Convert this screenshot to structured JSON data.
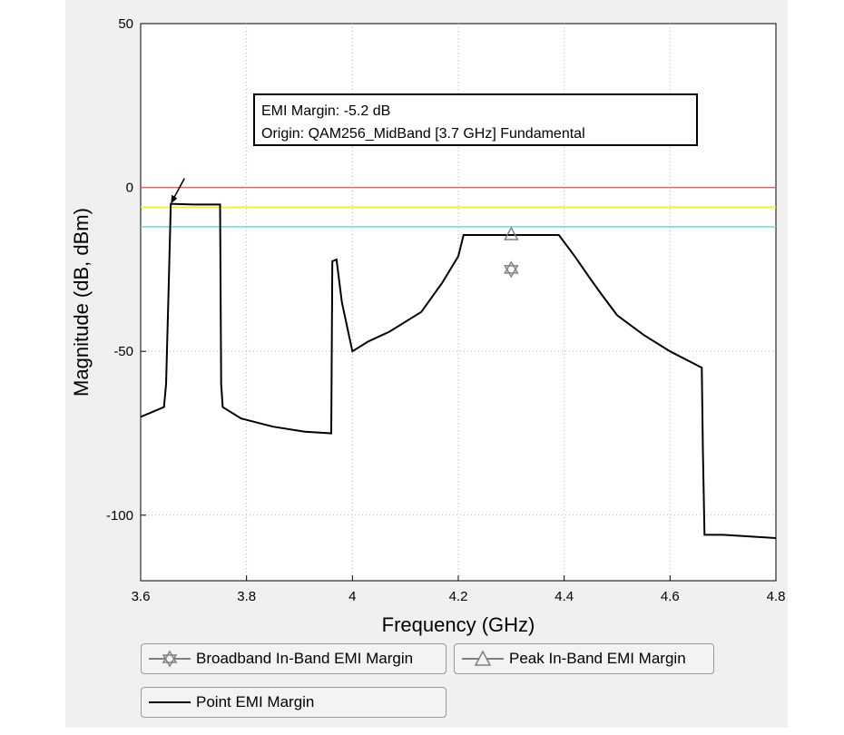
{
  "chart_data": {
    "type": "line",
    "title": "",
    "xlabel": "Frequency (GHz)",
    "ylabel": "Magnitude (dB, dBm)",
    "xlim": [
      3.6,
      4.8
    ],
    "ylim": [
      -120,
      50
    ],
    "xticks": [
      "3.6",
      "3.8",
      "4",
      "4.2",
      "4.4",
      "4.6",
      "4.8"
    ],
    "yticks": [
      "50",
      "0",
      "-50",
      "-100"
    ],
    "xtick_values": [
      3.6,
      3.8,
      4.0,
      4.2,
      4.4,
      4.6,
      4.8
    ],
    "ytick_values": [
      50,
      0,
      -50,
      -100
    ],
    "grid": true,
    "series": [
      {
        "name": "Point EMI Margin",
        "color": "#000000",
        "x": [
          3.6,
          3.644,
          3.648,
          3.653,
          3.657,
          3.7,
          3.75,
          3.752,
          3.755,
          3.79,
          3.85,
          3.91,
          3.96,
          3.962,
          3.97,
          3.98,
          4.0,
          4.03,
          4.07,
          4.13,
          4.17,
          4.2,
          4.21,
          4.3,
          4.39,
          4.42,
          4.45,
          4.47,
          4.5,
          4.55,
          4.6,
          4.66,
          4.662,
          4.665,
          4.7,
          4.8
        ],
        "y": [
          -70,
          -67,
          -60,
          -30,
          -5,
          -5.2,
          -5.2,
          -60,
          -67,
          -70.5,
          -73,
          -74.5,
          -75,
          -22.5,
          -22,
          -35,
          -50,
          -47,
          -44,
          -38,
          -29,
          -21,
          -14.5,
          -14.5,
          -14.5,
          -21,
          -28,
          -32.5,
          -39,
          -45,
          -50,
          -55,
          -80,
          -106,
          -106,
          -107
        ]
      }
    ],
    "markers": [
      {
        "name": "Broadband In-Band EMI Margin",
        "symbol": "star",
        "x": 4.3,
        "y": -25,
        "color": "#808080"
      },
      {
        "name": "Peak In-Band EMI Margin",
        "symbol": "triangle",
        "x": 4.3,
        "y": -14.5,
        "color": "#808080"
      }
    ],
    "reference_lines": [
      {
        "y": 0,
        "color": "#c87070"
      },
      {
        "y": -6,
        "color": "#f0f030"
      },
      {
        "y": -12,
        "color": "#50e8e8"
      }
    ],
    "arrow": {
      "x": 3.657,
      "y": -5
    },
    "annotation": {
      "line1": "EMI Margin: -5.2 dB",
      "line2": "Origin: QAM256_MidBand [3.7 GHz] Fundamental"
    },
    "legend": {
      "placement": "bottom",
      "items": [
        {
          "label": "Broadband In-Band EMI Margin",
          "symbol": "star"
        },
        {
          "label": "Peak In-Band EMI Margin",
          "symbol": "triangle"
        },
        {
          "label": "Point EMI Margin",
          "symbol": "line"
        }
      ]
    }
  }
}
